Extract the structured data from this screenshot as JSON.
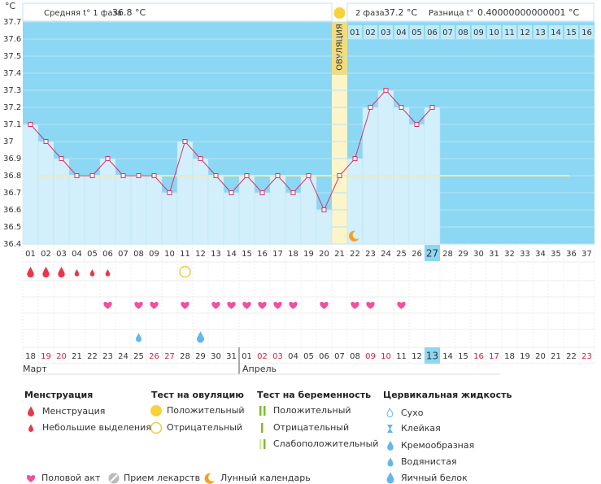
{
  "chart_data": {
    "type": "line",
    "y_label": "°C",
    "header": {
      "phase1_label": "Средняя t° 1 фаза",
      "phase1_value": "36.8 °C",
      "phase2_label": "2 фаза",
      "phase2_value": "37.2 °C",
      "difference_label": "Разница t°",
      "difference_value": "0.40000000000001 °C"
    },
    "ovulation_label": "ОВУЛЯЦИЯ",
    "categories": [
      "01",
      "02",
      "03",
      "04",
      "05",
      "06",
      "07",
      "08",
      "09",
      "10",
      "11",
      "12",
      "13",
      "14",
      "15",
      "16",
      "17",
      "18",
      "19",
      "20",
      "21",
      "22",
      "23",
      "24",
      "25",
      "26",
      "27",
      "28",
      "29",
      "30",
      "31",
      "32",
      "33",
      "34",
      "35",
      "36",
      "37"
    ],
    "values": [
      37.1,
      37.0,
      36.9,
      36.8,
      36.8,
      36.9,
      36.8,
      36.8,
      36.8,
      36.7,
      37.0,
      36.9,
      36.8,
      36.7,
      36.8,
      36.7,
      36.8,
      36.7,
      36.8,
      36.6,
      36.8,
      36.9,
      37.2,
      37.3,
      37.2,
      37.1,
      37.2,
      null,
      null,
      null,
      null,
      null,
      null,
      null,
      null,
      null,
      null
    ],
    "color": "#d6336c",
    "coverline": 36.8,
    "ylim": [
      36.4,
      37.7
    ],
    "yticks": [
      36.4,
      36.5,
      36.6,
      36.7,
      36.8,
      36.9,
      37,
      37.1,
      37.2,
      37.3,
      37.4,
      37.5,
      37.6,
      37.7
    ],
    "grid": true,
    "phase2_days": [
      "01",
      "02",
      "03",
      "04",
      "05",
      "06",
      "07",
      "08",
      "09",
      "10",
      "11",
      "12",
      "13",
      "14",
      "15",
      "16"
    ],
    "dates": [
      "18",
      "19",
      "20",
      "21",
      "22",
      "23",
      "24",
      "25",
      "26",
      "27",
      "28",
      "29",
      "30",
      "31",
      "01",
      "02",
      "03",
      "04",
      "05",
      "06",
      "07",
      "08",
      "09",
      "10",
      "11",
      "12",
      "13",
      "14",
      "15",
      "16",
      "17",
      "18",
      "19",
      "20",
      "21",
      "22",
      "23"
    ],
    "months": [
      "Март",
      "Апрель"
    ]
  },
  "legend": {
    "menstruation": {
      "title": "Менструация",
      "items": [
        "Менструация",
        "Небольшие выделения"
      ]
    },
    "ovulation_test": {
      "title": "Тест на овуляцию",
      "items": [
        "Положительный",
        "Отрицательный"
      ]
    },
    "pregnancy_test": {
      "title": "Тест на беременность",
      "items": [
        "Положительный",
        "Отрицательный",
        "Слабоположительный"
      ]
    },
    "cervical_fluid": {
      "title": "Цервикальная жидкость",
      "items": [
        "Сухо",
        "Клейкая",
        "Кремообразная",
        "Водянистая",
        "Яичный белок"
      ]
    },
    "other": [
      "Половой акт",
      "Прием лекарств",
      "Лунный календарь"
    ]
  }
}
